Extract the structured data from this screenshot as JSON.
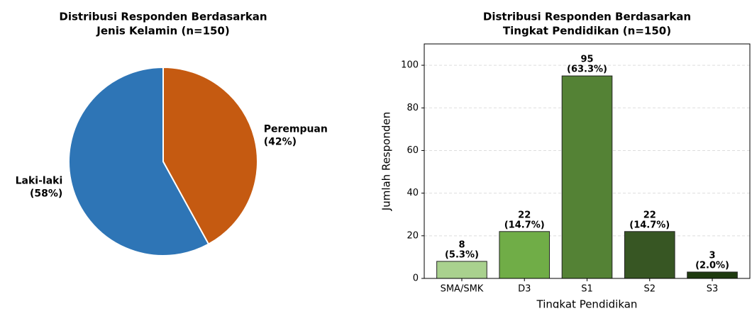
{
  "chart_data": [
    {
      "type": "pie",
      "title": [
        "Distribusi Responden Berdasarkan",
        "Jenis Kelamin (n=150)"
      ],
      "categories": [
        "Laki-laki",
        "Perempuan"
      ],
      "values": [
        58,
        42
      ],
      "value_labels": [
        "(58%)",
        "(42%)"
      ],
      "colors": [
        "#2e75b6",
        "#c55a11"
      ]
    },
    {
      "type": "bar",
      "title": [
        "Distribusi Responden Berdasarkan",
        "Tingkat Pendidikan (n=150)"
      ],
      "x_label": "Tingkat Pendidikan",
      "y_label": "Jumlah Responden",
      "categories": [
        "SMA/SMK",
        "D3",
        "S1",
        "S2",
        "S3"
      ],
      "values": [
        8,
        22,
        95,
        22,
        3
      ],
      "shares": [
        "(5.3%)",
        "(14.7%)",
        "(63.3%)",
        "(14.7%)",
        "(2.0%)"
      ],
      "colors": [
        "#a9d18e",
        "#70ad47",
        "#548235",
        "#375623",
        "#1e3a0f"
      ],
      "ylim": [
        0,
        110
      ],
      "yticks": [
        0,
        20,
        40,
        60,
        80,
        100
      ],
      "grid": true
    }
  ]
}
